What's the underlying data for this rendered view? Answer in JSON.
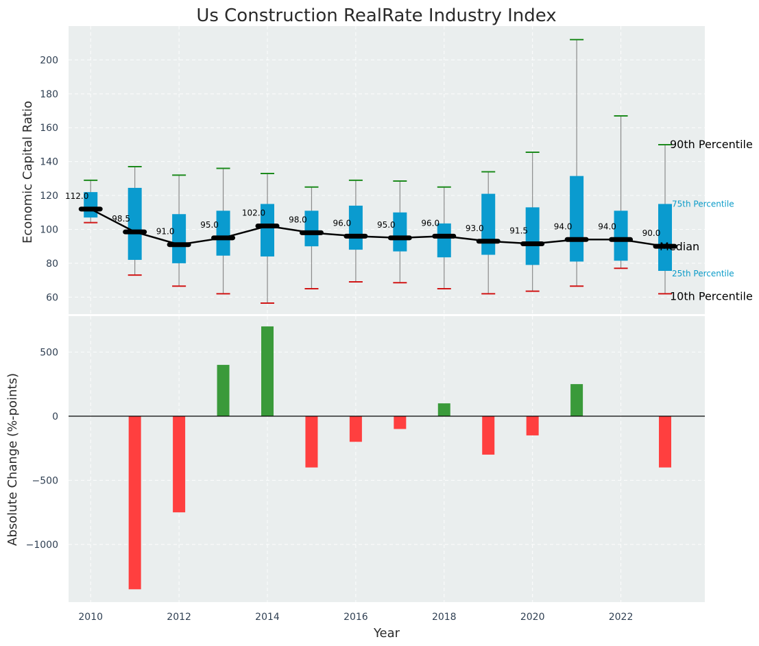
{
  "chart_data": [
    {
      "type": "box",
      "title": "Us Construction RealRate Industry Index",
      "ylabel": "Economic Capital Ratio",
      "ylim": [
        50,
        220
      ],
      "yticks": [
        60,
        80,
        100,
        120,
        140,
        160,
        180,
        200
      ],
      "grid": true,
      "years": [
        2010,
        2011,
        2012,
        2013,
        2014,
        2015,
        2016,
        2017,
        2018,
        2019,
        2020,
        2021,
        2022,
        2023
      ],
      "p10": [
        104,
        73,
        66.5,
        62,
        56.5,
        65,
        69,
        68.5,
        65,
        62,
        63.5,
        66.5,
        77,
        62
      ],
      "q1": [
        107,
        82,
        80,
        84.5,
        84,
        90,
        88,
        87,
        83.5,
        85,
        79,
        81,
        81.5,
        75.5
      ],
      "median": [
        112,
        98.5,
        91,
        95,
        102,
        98,
        96,
        95,
        96,
        93,
        91.5,
        94,
        94,
        90
      ],
      "q3": [
        122,
        124.5,
        109,
        111,
        115,
        111,
        114,
        110,
        103.5,
        121,
        113,
        131.5,
        111,
        115
      ],
      "p90": [
        129,
        137,
        132,
        136,
        133,
        125,
        129,
        128.5,
        125,
        134,
        145.5,
        212,
        167,
        150
      ],
      "median_labels": [
        "112.0",
        "98.5",
        "91.0",
        "95.0",
        "102.0",
        "98.0",
        "96.0",
        "95.0",
        "96.0",
        "93.0",
        "91.5",
        "94.0",
        "94.0",
        "90.0"
      ],
      "legend": {
        "p90": "90th Percentile",
        "q3": "75th Percentile",
        "median": "Median",
        "q1": "25th Percentile",
        "p10": "10th Percentile"
      },
      "colors": {
        "box": "#0a9bcf",
        "median": "#000000",
        "whisker": "#8a8a8a",
        "p90_cap": "#1b8a1b",
        "p10_cap": "#d11414",
        "background": "#eaeeee"
      }
    },
    {
      "type": "bar",
      "ylabel": "Absolute Change (%-points)",
      "xlabel": "Year",
      "ylim": [
        -1450,
        780
      ],
      "yticks": [
        -1000,
        -500,
        0,
        500
      ],
      "ytick_labels": [
        "−1000",
        "−500",
        "0",
        "500"
      ],
      "xticks": [
        2010,
        2012,
        2014,
        2016,
        2018,
        2020,
        2022
      ],
      "xlim": [
        2009.5,
        2023.9
      ],
      "grid": true,
      "categories": [
        2011,
        2012,
        2013,
        2014,
        2015,
        2016,
        2017,
        2018,
        2019,
        2020,
        2021,
        2023
      ],
      "values": [
        -1350,
        -750,
        400,
        700,
        -400,
        -200,
        -100,
        100,
        -300,
        -150,
        250,
        -400
      ],
      "colors": {
        "positive": "#3a9a3a",
        "negative": "#ff3f3f",
        "zero_line": "#000000",
        "background": "#eaeeee"
      }
    }
  ]
}
